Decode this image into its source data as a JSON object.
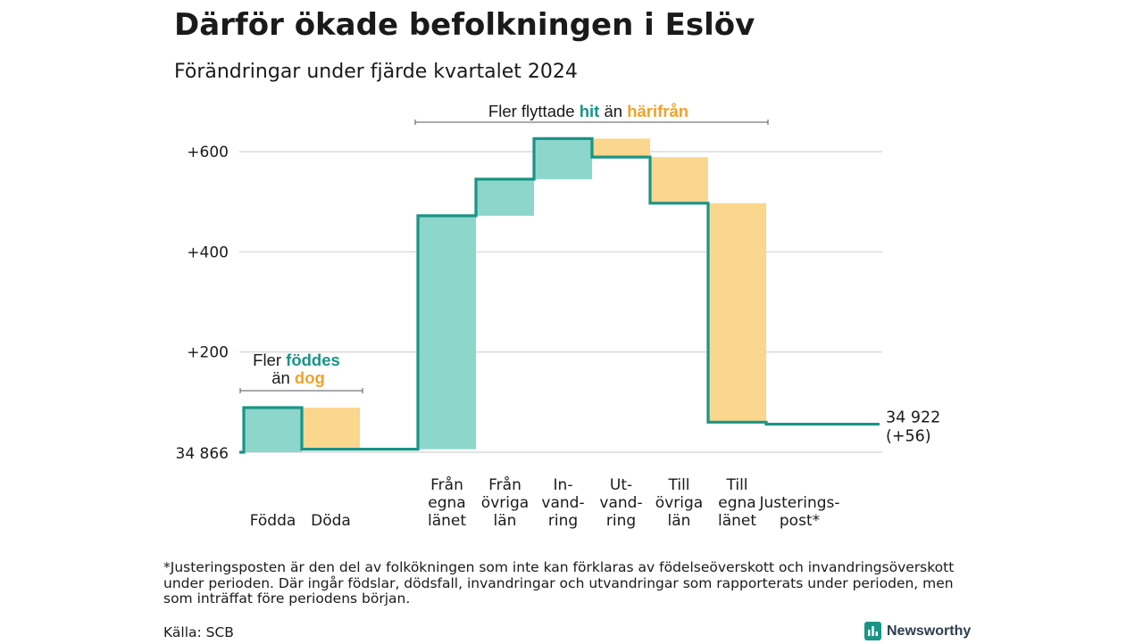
{
  "title": "Därför ökade befolkningen i Eslöv",
  "subtitle": "Förändringar under fjärde kvartalet 2024",
  "colors": {
    "in": "#8dd6cc",
    "out": "#fad68e",
    "line": "#1a9486",
    "in_text": "#1a9486",
    "out_text": "#f2a22a"
  },
  "chart_data": {
    "type": "waterfall",
    "base_label": "34 866",
    "end_label": [
      "34 922",
      "(+56)"
    ],
    "yticks": [
      {
        "value": 600,
        "label": "+600"
      },
      {
        "value": 400,
        "label": "+400"
      },
      {
        "value": 200,
        "label": "+200"
      }
    ],
    "ylim": [
      0,
      660
    ],
    "steps": [
      {
        "label": [
          "Födda"
        ],
        "value": 89,
        "kind": "in"
      },
      {
        "label": [
          "Döda"
        ],
        "value": -83,
        "kind": "out"
      },
      {
        "label": [],
        "value": 0,
        "kind": "gap"
      },
      {
        "label": [
          "Från",
          "egna",
          "länet"
        ],
        "value": 466,
        "kind": "in"
      },
      {
        "label": [
          "Från",
          "övriga",
          "län"
        ],
        "value": 73,
        "kind": "in"
      },
      {
        "label": [
          "In-",
          "vand-",
          "ring"
        ],
        "value": 81,
        "kind": "in"
      },
      {
        "label": [
          "Ut-",
          "vand-",
          "ring"
        ],
        "value": -37,
        "kind": "out"
      },
      {
        "label": [
          "Till",
          "övriga",
          "län"
        ],
        "value": -92,
        "kind": "out"
      },
      {
        "label": [
          "Till",
          "egna",
          "länet"
        ],
        "value": -437,
        "kind": "out"
      },
      {
        "label": [
          "Justerings-",
          "post*"
        ],
        "value": -4,
        "kind": "adj"
      }
    ],
    "annotations": {
      "births": {
        "pre": "Fler",
        "in_word": "föddes",
        "mid": "än",
        "out_word": "dog"
      },
      "migration": {
        "pre": "Fler flyttade",
        "in_word": "hit",
        "mid": "än",
        "out_word": "härifrån"
      }
    }
  },
  "footnote": "*Justeringsposten är den del av folkökningen som inte kan förklaras av födelseöverskott och invandringsöverskott under perioden. Där ingår födslar, dödsfall, invandringar och utvandringar som rapporterats under perioden, men som inträffat före periodens början.",
  "source": "Källa: SCB",
  "brand": {
    "name": "Newsworthy",
    "icon": "newsworthy-logo-icon"
  }
}
